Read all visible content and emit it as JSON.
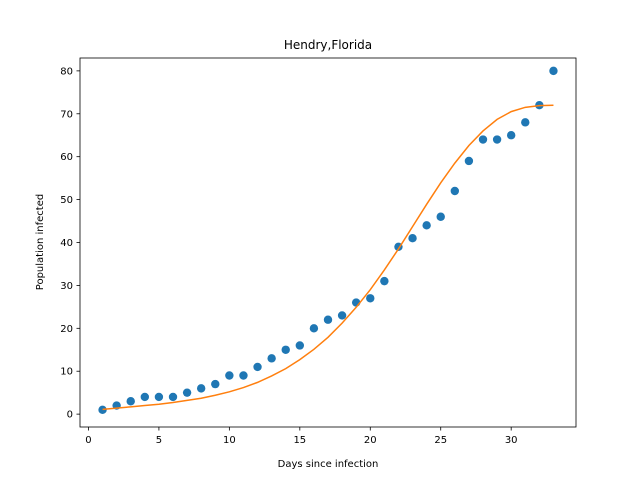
{
  "chart_data": {
    "type": "scatter",
    "title": "Hendry,Florida",
    "xlabel": "Days since infection",
    "ylabel": "Population infected",
    "xlim": [
      -0.6,
      34.6
    ],
    "ylim": [
      -3,
      83
    ],
    "xticks": [
      0,
      5,
      10,
      15,
      20,
      25,
      30
    ],
    "yticks": [
      0,
      10,
      20,
      30,
      40,
      50,
      60,
      70,
      80
    ],
    "grid": false,
    "series": [
      {
        "kind": "scatter",
        "color": "#1f77b4",
        "x": [
          1,
          2,
          3,
          4,
          5,
          6,
          7,
          8,
          9,
          10,
          11,
          12,
          13,
          14,
          15,
          16,
          17,
          18,
          19,
          20,
          21,
          22,
          23,
          24,
          25,
          26,
          27,
          28,
          29,
          30,
          31,
          32,
          33
        ],
        "y": [
          1,
          2,
          3,
          4,
          4,
          4,
          5,
          6,
          7,
          9,
          9,
          11,
          13,
          15,
          16,
          20,
          22,
          23,
          26,
          27,
          31,
          39,
          41,
          44,
          46,
          52,
          59,
          64,
          64,
          65,
          68,
          72,
          80
        ]
      },
      {
        "kind": "line",
        "color": "#ff7f0e",
        "x": [
          1,
          2,
          3,
          4,
          5,
          6,
          7,
          8,
          9,
          10,
          11,
          12,
          13,
          14,
          15,
          16,
          17,
          18,
          19,
          20,
          21,
          22,
          23,
          24,
          25,
          26,
          27,
          28,
          29,
          30,
          31,
          32,
          33
        ],
        "y": [
          1.1,
          1.4,
          1.7,
          2.0,
          2.3,
          2.7,
          3.2,
          3.7,
          4.4,
          5.2,
          6.2,
          7.4,
          8.9,
          10.6,
          12.7,
          15.1,
          17.9,
          21.2,
          24.9,
          29.0,
          33.6,
          38.5,
          43.7,
          48.9,
          53.9,
          58.5,
          62.6,
          66.0,
          68.7,
          70.5,
          71.5,
          71.9,
          72.0
        ]
      }
    ]
  }
}
